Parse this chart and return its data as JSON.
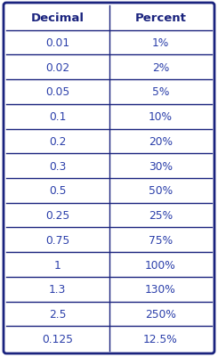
{
  "headers": [
    "Decimal",
    "Percent"
  ],
  "rows": [
    [
      "0.01",
      "1%"
    ],
    [
      "0.02",
      "2%"
    ],
    [
      "0.05",
      "5%"
    ],
    [
      "0.1",
      "10%"
    ],
    [
      "0.2",
      "20%"
    ],
    [
      "0.3",
      "30%"
    ],
    [
      "0.5",
      "50%"
    ],
    [
      "0.25",
      "25%"
    ],
    [
      "0.75",
      "75%"
    ],
    [
      "1",
      "100%"
    ],
    [
      "1.3",
      "130%"
    ],
    [
      "2.5",
      "250%"
    ],
    [
      "0.125",
      "12.5%"
    ]
  ],
  "header_color": "#1a237e",
  "text_color": "#2b3faa",
  "bg_color": "#ffffff",
  "border_color": "#1a237e",
  "header_fontsize": 9.5,
  "cell_fontsize": 8.8,
  "header_font_weight": "bold"
}
